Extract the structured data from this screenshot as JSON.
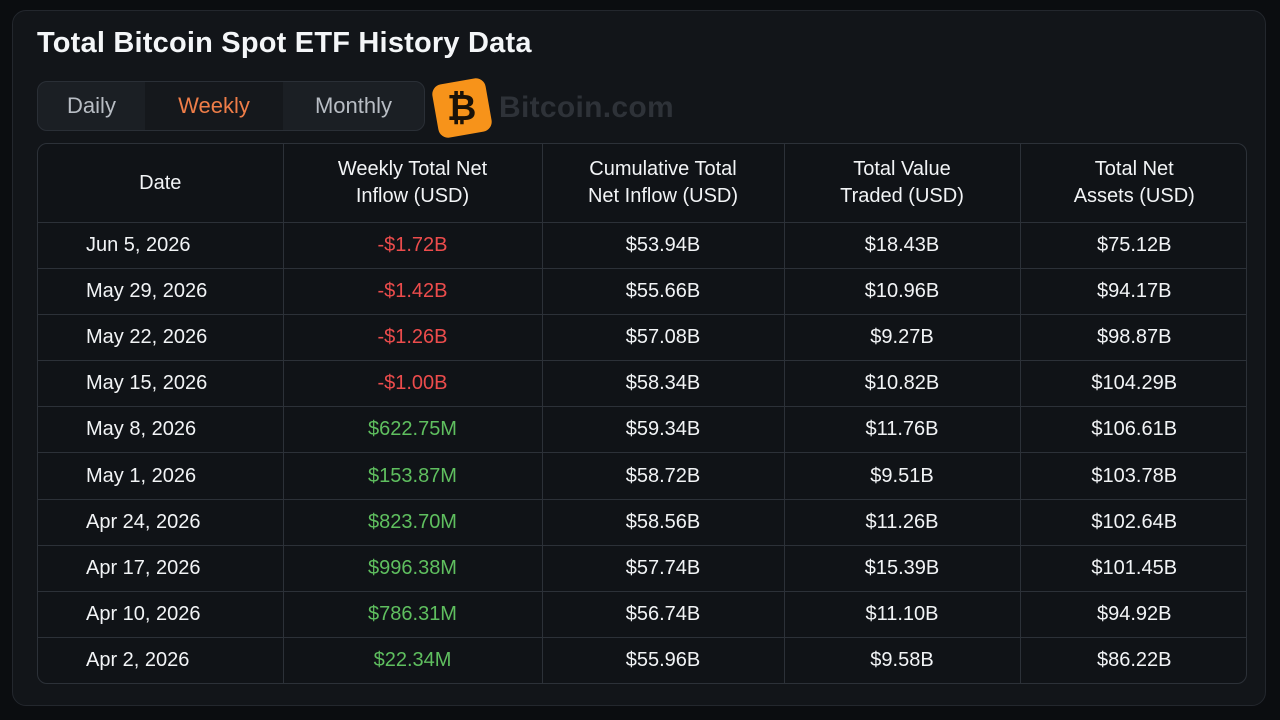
{
  "title": "Total Bitcoin Spot ETF History Data",
  "tabs": {
    "daily": "Daily",
    "weekly": "Weekly",
    "monthly": "Monthly",
    "active": "Weekly"
  },
  "brand": {
    "logo_glyph": "₿",
    "name": "Bitcoin.com",
    "color": "#f7931a"
  },
  "colors": {
    "accent_tab": "#ee7d48",
    "negative": "#ec4c4c",
    "positive": "#5fbf5f"
  },
  "table": {
    "headers": [
      "Date",
      "Weekly Total Net\nInflow (USD)",
      "Cumulative Total\nNet Inflow (USD)",
      "Total Value\nTraded (USD)",
      "Total Net\nAssets (USD)"
    ],
    "rows": [
      {
        "date": "Jun 5, 2026",
        "weekly": "-$1.72B",
        "cumulative": "$53.94B",
        "traded": "$18.43B",
        "assets": "$75.12B"
      },
      {
        "date": "May 29, 2026",
        "weekly": "-$1.42B",
        "cumulative": "$55.66B",
        "traded": "$10.96B",
        "assets": "$94.17B"
      },
      {
        "date": "May 22, 2026",
        "weekly": "-$1.26B",
        "cumulative": "$57.08B",
        "traded": "$9.27B",
        "assets": "$98.87B"
      },
      {
        "date": "May 15, 2026",
        "weekly": "-$1.00B",
        "cumulative": "$58.34B",
        "traded": "$10.82B",
        "assets": "$104.29B"
      },
      {
        "date": "May 8, 2026",
        "weekly": "$622.75M",
        "cumulative": "$59.34B",
        "traded": "$11.76B",
        "assets": "$106.61B"
      },
      {
        "date": "May 1, 2026",
        "weekly": "$153.87M",
        "cumulative": "$58.72B",
        "traded": "$9.51B",
        "assets": "$103.78B"
      },
      {
        "date": "Apr 24, 2026",
        "weekly": "$823.70M",
        "cumulative": "$58.56B",
        "traded": "$11.26B",
        "assets": "$102.64B"
      },
      {
        "date": "Apr 17, 2026",
        "weekly": "$996.38M",
        "cumulative": "$57.74B",
        "traded": "$15.39B",
        "assets": "$101.45B"
      },
      {
        "date": "Apr 10, 2026",
        "weekly": "$786.31M",
        "cumulative": "$56.74B",
        "traded": "$11.10B",
        "assets": "$94.92B"
      },
      {
        "date": "Apr 2, 2026",
        "weekly": "$22.34M",
        "cumulative": "$55.96B",
        "traded": "$9.58B",
        "assets": "$86.22B"
      }
    ]
  }
}
